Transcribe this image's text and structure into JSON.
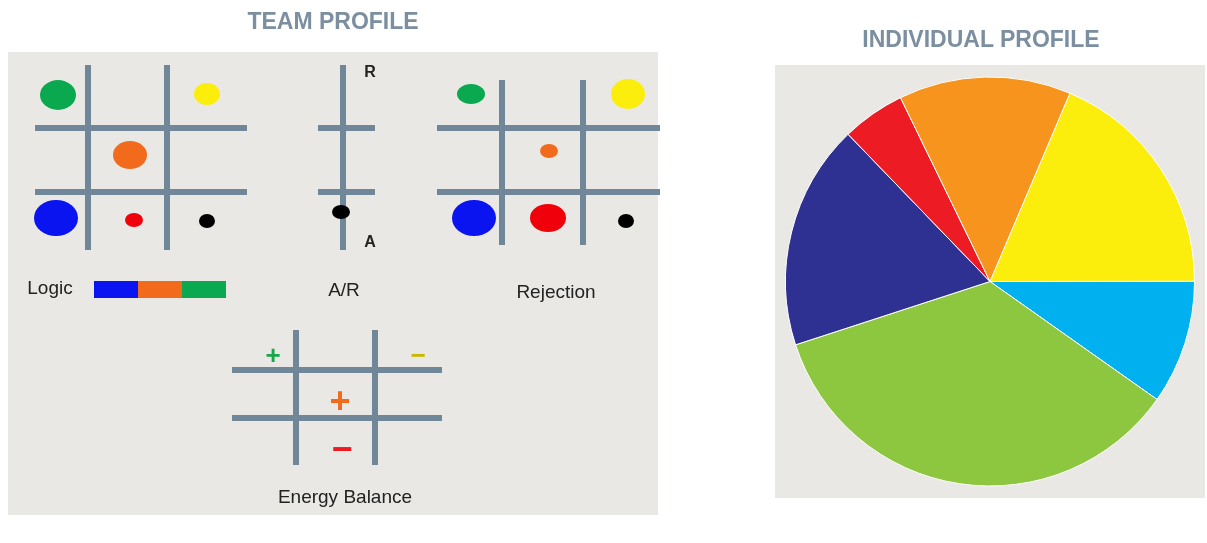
{
  "chart_data": [
    {
      "type": "other",
      "title": "TEAM PROFILE",
      "annotations": [
        "R",
        "A",
        "Logic",
        "A/R",
        "Rejection",
        "+",
        "−",
        "+",
        "−",
        "Energy Balance"
      ]
    },
    {
      "type": "pie",
      "title": "INDIVIDUAL PROFILE",
      "categories": [
        null,
        null,
        null,
        null,
        null,
        null
      ],
      "values": [
        18.6,
        9.8,
        35.2,
        17.8,
        5,
        13.6
      ],
      "colors": [
        "#fcee0c",
        "#00b0ef",
        "#8dc63f",
        "#2e3192",
        "#ed1c24",
        "#f7941d"
      ],
      "legend": false
    }
  ]
}
